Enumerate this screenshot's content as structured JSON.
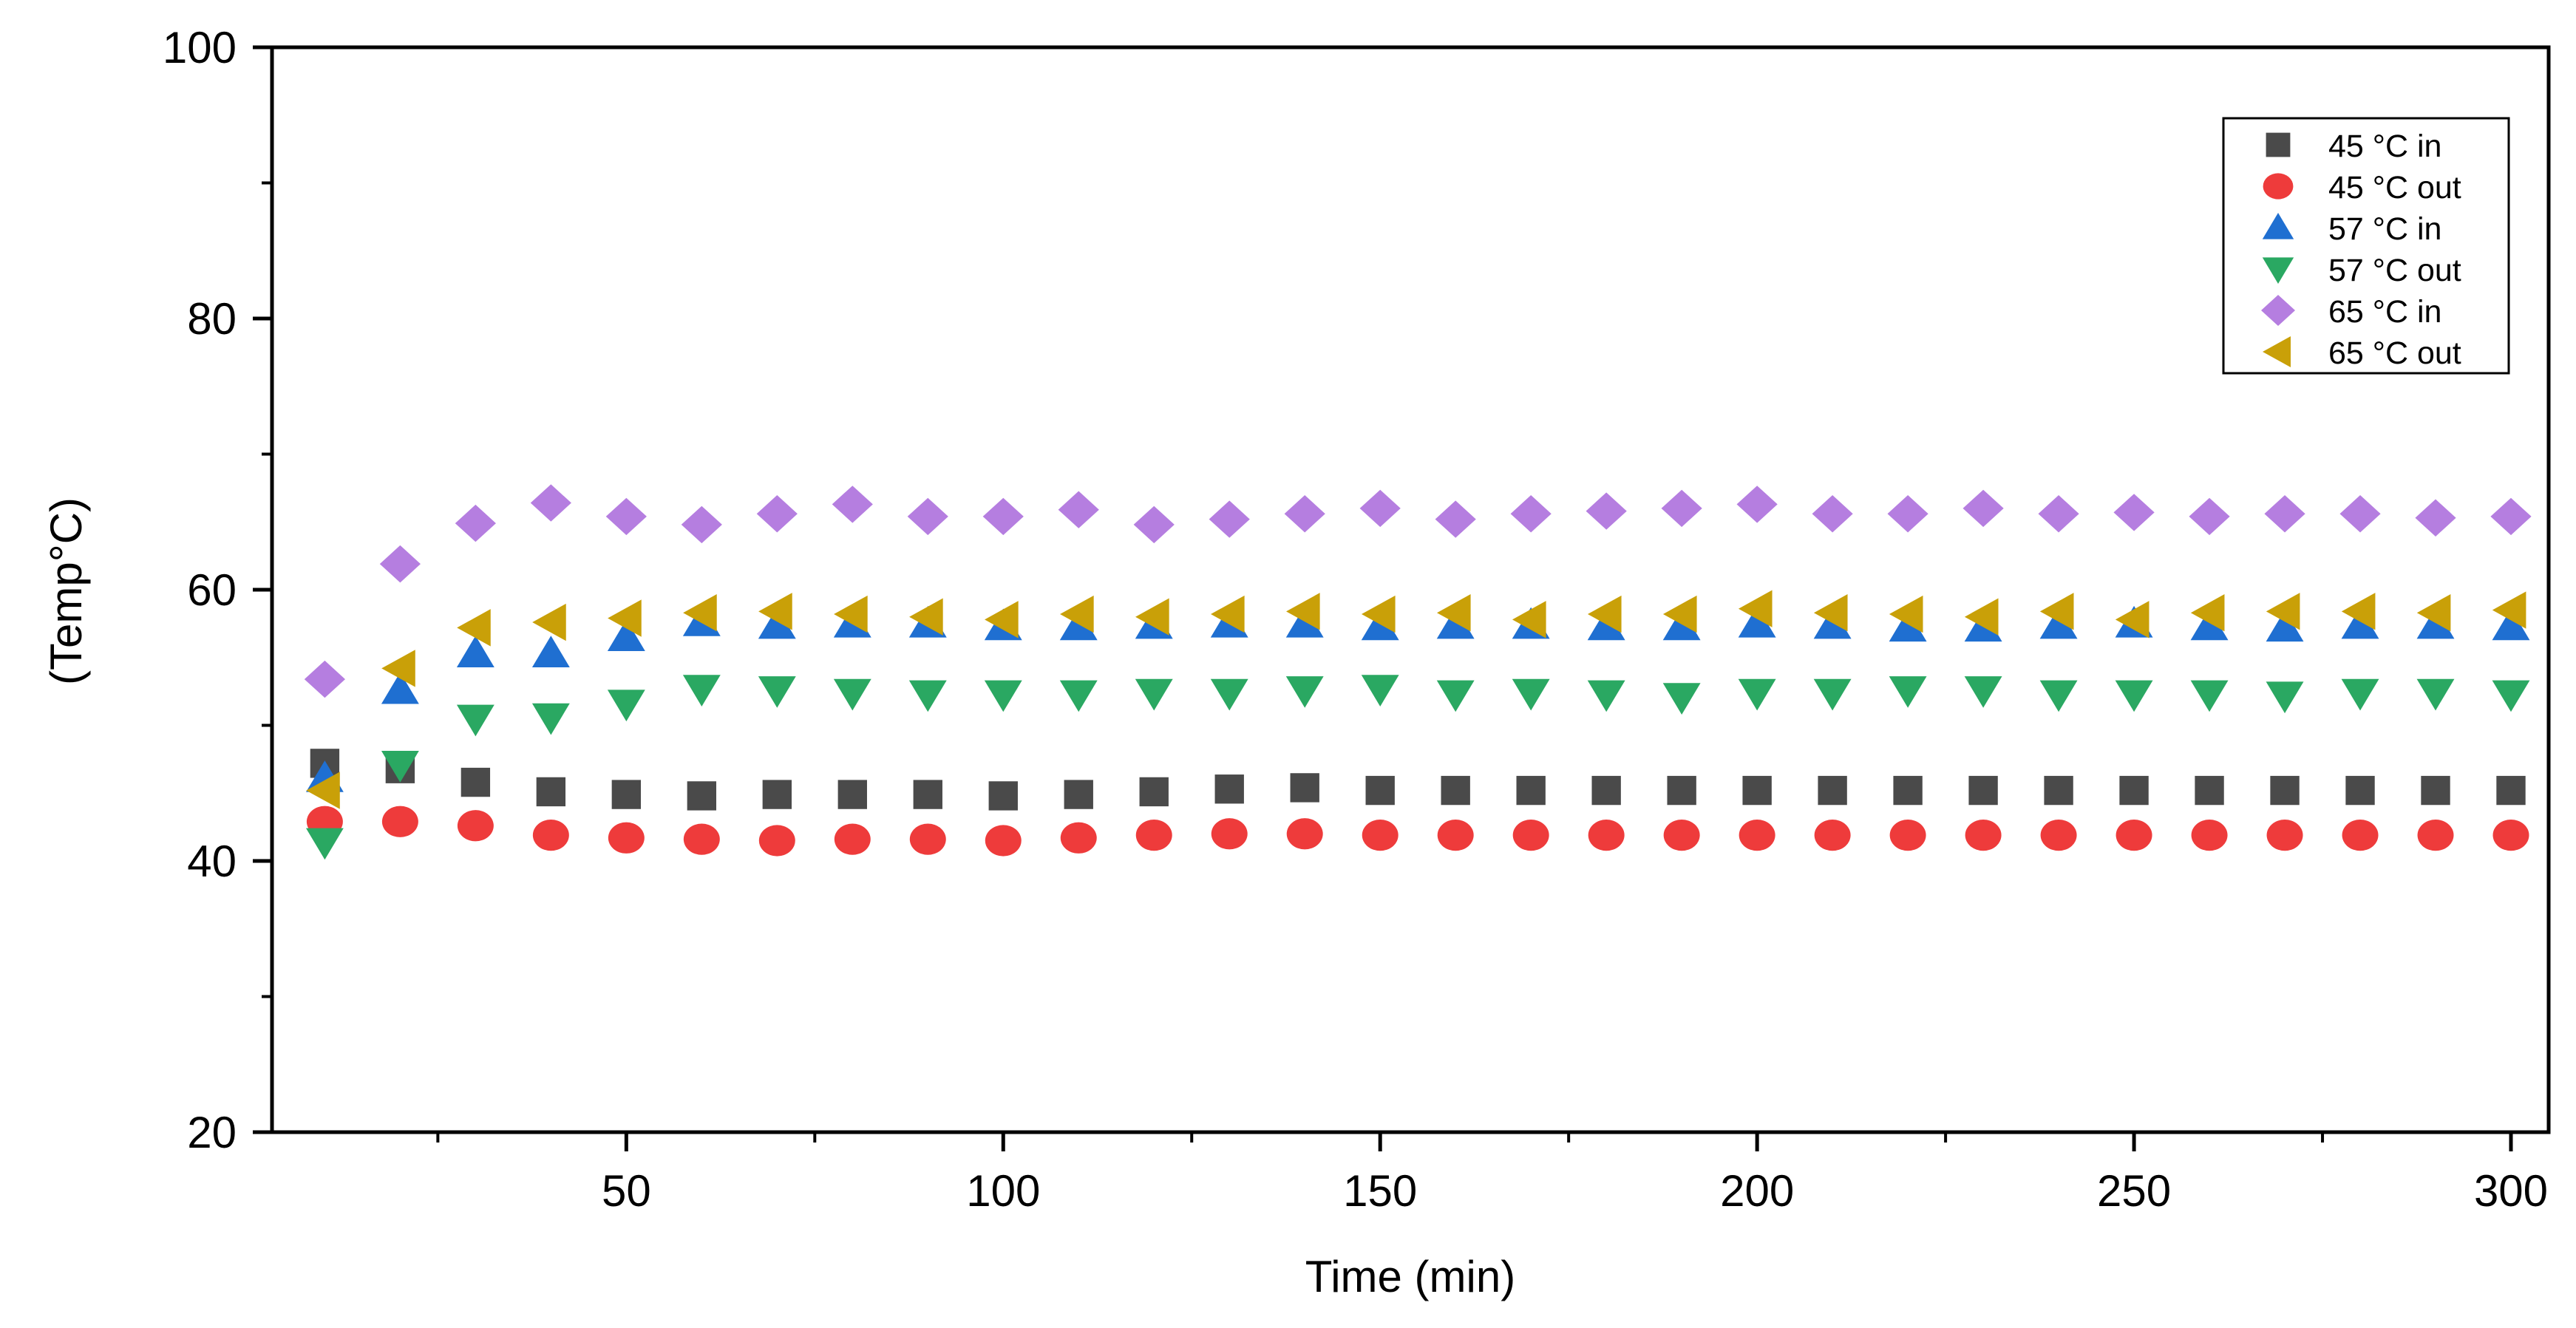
{
  "chart_data": {
    "type": "scatter",
    "title": "",
    "xlabel": "Time (min)",
    "ylabel": "(Temp°C)",
    "xlim": [
      3,
      305
    ],
    "ylim": [
      20,
      100
    ],
    "xticks": [
      "50",
      "100",
      "150",
      "200",
      "250",
      "300"
    ],
    "yticks": [
      "20",
      "40",
      "60",
      "80",
      "100"
    ],
    "grid": false,
    "legend_position": "top-right",
    "x": [
      10,
      20,
      30,
      40,
      50,
      60,
      70,
      80,
      90,
      100,
      110,
      120,
      130,
      140,
      150,
      160,
      170,
      180,
      190,
      200,
      210,
      220,
      230,
      240,
      250,
      260,
      270,
      280,
      290,
      300
    ],
    "series": [
      {
        "name": "45 °C in",
        "marker": "square",
        "color": "#4a4a4a",
        "values": [
          47.2,
          46.8,
          45.8,
          45.1,
          44.9,
          44.8,
          44.9,
          44.9,
          44.9,
          44.8,
          44.9,
          45.1,
          45.3,
          45.4,
          45.2,
          45.2,
          45.2,
          45.2,
          45.2,
          45.2,
          45.2,
          45.2,
          45.2,
          45.2,
          45.2,
          45.2,
          45.2,
          45.2,
          45.2,
          45.2
        ]
      },
      {
        "name": "45 °C out",
        "marker": "circle",
        "color": "#ee3b3b",
        "values": [
          42.9,
          42.9,
          42.6,
          41.9,
          41.7,
          41.6,
          41.5,
          41.6,
          41.6,
          41.5,
          41.7,
          41.9,
          42.0,
          42.0,
          41.9,
          41.9,
          41.9,
          41.9,
          41.9,
          41.9,
          41.9,
          41.9,
          41.9,
          41.9,
          41.9,
          41.9,
          41.9,
          41.9,
          41.9,
          41.9
        ]
      },
      {
        "name": "57 °C  in",
        "marker": "triangle-up",
        "color": "#1f6fd1",
        "values": [
          46.1,
          52.6,
          55.3,
          55.3,
          56.5,
          57.6,
          57.4,
          57.5,
          57.5,
          57.3,
          57.3,
          57.4,
          57.5,
          57.5,
          57.3,
          57.4,
          57.4,
          57.3,
          57.3,
          57.5,
          57.4,
          57.2,
          57.2,
          57.4,
          57.5,
          57.3,
          57.2,
          57.4,
          57.4,
          57.3
        ]
      },
      {
        "name": "57 °C out",
        "marker": "triangle-down",
        "color": "#2aa862",
        "values": [
          41.4,
          47.1,
          50.5,
          50.6,
          51.6,
          52.7,
          52.6,
          52.4,
          52.3,
          52.3,
          52.3,
          52.4,
          52.4,
          52.6,
          52.7,
          52.3,
          52.4,
          52.3,
          52.1,
          52.4,
          52.4,
          52.6,
          52.6,
          52.3,
          52.3,
          52.3,
          52.2,
          52.4,
          52.4,
          52.3
        ]
      },
      {
        "name": "65 °C  in",
        "marker": "diamond",
        "color": "#b57ee0",
        "values": [
          53.4,
          61.9,
          64.9,
          66.4,
          65.4,
          64.8,
          65.6,
          66.3,
          65.4,
          65.4,
          65.9,
          64.8,
          65.2,
          65.6,
          66.0,
          65.2,
          65.6,
          65.8,
          66.0,
          66.3,
          65.6,
          65.6,
          66.0,
          65.6,
          65.7,
          65.4,
          65.6,
          65.6,
          65.3,
          65.4
        ]
      },
      {
        "name": "65 °C out",
        "marker": "triangle-left",
        "color": "#c9a008",
        "values": [
          45.2,
          54.2,
          57.2,
          57.6,
          57.9,
          58.3,
          58.4,
          58.2,
          58.0,
          57.8,
          58.2,
          58.0,
          58.2,
          58.4,
          58.2,
          58.3,
          57.8,
          58.2,
          58.2,
          58.6,
          58.3,
          58.2,
          58.0,
          58.4,
          57.8,
          58.3,
          58.4,
          58.4,
          58.3,
          58.5
        ]
      }
    ]
  }
}
